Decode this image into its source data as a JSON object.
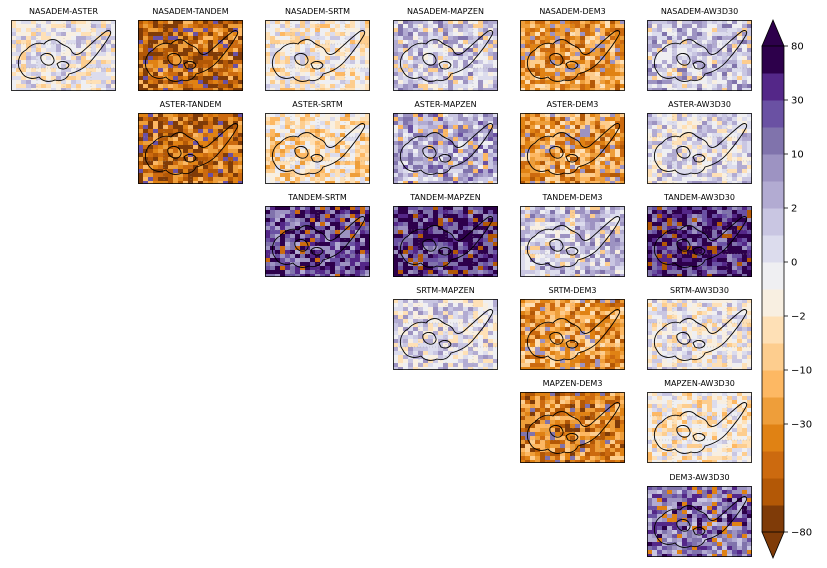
{
  "chart_data": {
    "type": "heatmap",
    "description_note": "",
    "colormap": [
      "#7f3b08",
      "#b35806",
      "#cc6a0f",
      "#e08214",
      "#ee9e3a",
      "#fdb863",
      "#fdcd8e",
      "#fee0b6",
      "#f8efe1",
      "#efeff2",
      "#dcdced",
      "#c9c6e2",
      "#b2abd2",
      "#9d93c2",
      "#8073ac",
      "#6a51a3",
      "#542788",
      "#2d004b"
    ],
    "colorbar": {
      "ticks": [
        "80",
        "30",
        "10",
        "2",
        "0",
        "−2",
        "−10",
        "−30",
        "−80"
      ],
      "extend": "both"
    },
    "panels": [
      {
        "title": "NASADEM-ASTER",
        "row": 0,
        "col": 0,
        "mean_class": 9
      },
      {
        "title": "NASADEM-TANDEM",
        "row": 0,
        "col": 1,
        "mean_class": 2
      },
      {
        "title": "NASADEM-SRTM",
        "row": 0,
        "col": 2,
        "mean_class": 8
      },
      {
        "title": "NASADEM-MAPZEN",
        "row": 0,
        "col": 3,
        "mean_class": 11
      },
      {
        "title": "NASADEM-DEM3",
        "row": 0,
        "col": 4,
        "mean_class": 4
      },
      {
        "title": "NASADEM-AW3D30",
        "row": 0,
        "col": 5,
        "mean_class": 11
      },
      {
        "title": "ASTER-TANDEM",
        "row": 1,
        "col": 1,
        "mean_class": 2
      },
      {
        "title": "ASTER-SRTM",
        "row": 1,
        "col": 2,
        "mean_class": 7
      },
      {
        "title": "ASTER-MAPZEN",
        "row": 1,
        "col": 3,
        "mean_class": 12
      },
      {
        "title": "ASTER-DEM3",
        "row": 1,
        "col": 4,
        "mean_class": 4
      },
      {
        "title": "ASTER-AW3D30",
        "row": 1,
        "col": 5,
        "mean_class": 10
      },
      {
        "title": "TANDEM-SRTM",
        "row": 2,
        "col": 2,
        "mean_class": 15
      },
      {
        "title": "TANDEM-MAPZEN",
        "row": 2,
        "col": 3,
        "mean_class": 16
      },
      {
        "title": "TANDEM-DEM3",
        "row": 2,
        "col": 4,
        "mean_class": 11
      },
      {
        "title": "TANDEM-AW3D30",
        "row": 2,
        "col": 5,
        "mean_class": 16
      },
      {
        "title": "SRTM-MAPZEN",
        "row": 3,
        "col": 3,
        "mean_class": 10
      },
      {
        "title": "SRTM-DEM3",
        "row": 3,
        "col": 4,
        "mean_class": 4
      },
      {
        "title": "SRTM-AW3D30",
        "row": 3,
        "col": 5,
        "mean_class": 9
      },
      {
        "title": "MAPZEN-DEM3",
        "row": 4,
        "col": 4,
        "mean_class": 3
      },
      {
        "title": "MAPZEN-AW3D30",
        "row": 4,
        "col": 5,
        "mean_class": 8
      },
      {
        "title": "DEM3-AW3D30",
        "row": 5,
        "col": 5,
        "mean_class": 14
      }
    ]
  }
}
